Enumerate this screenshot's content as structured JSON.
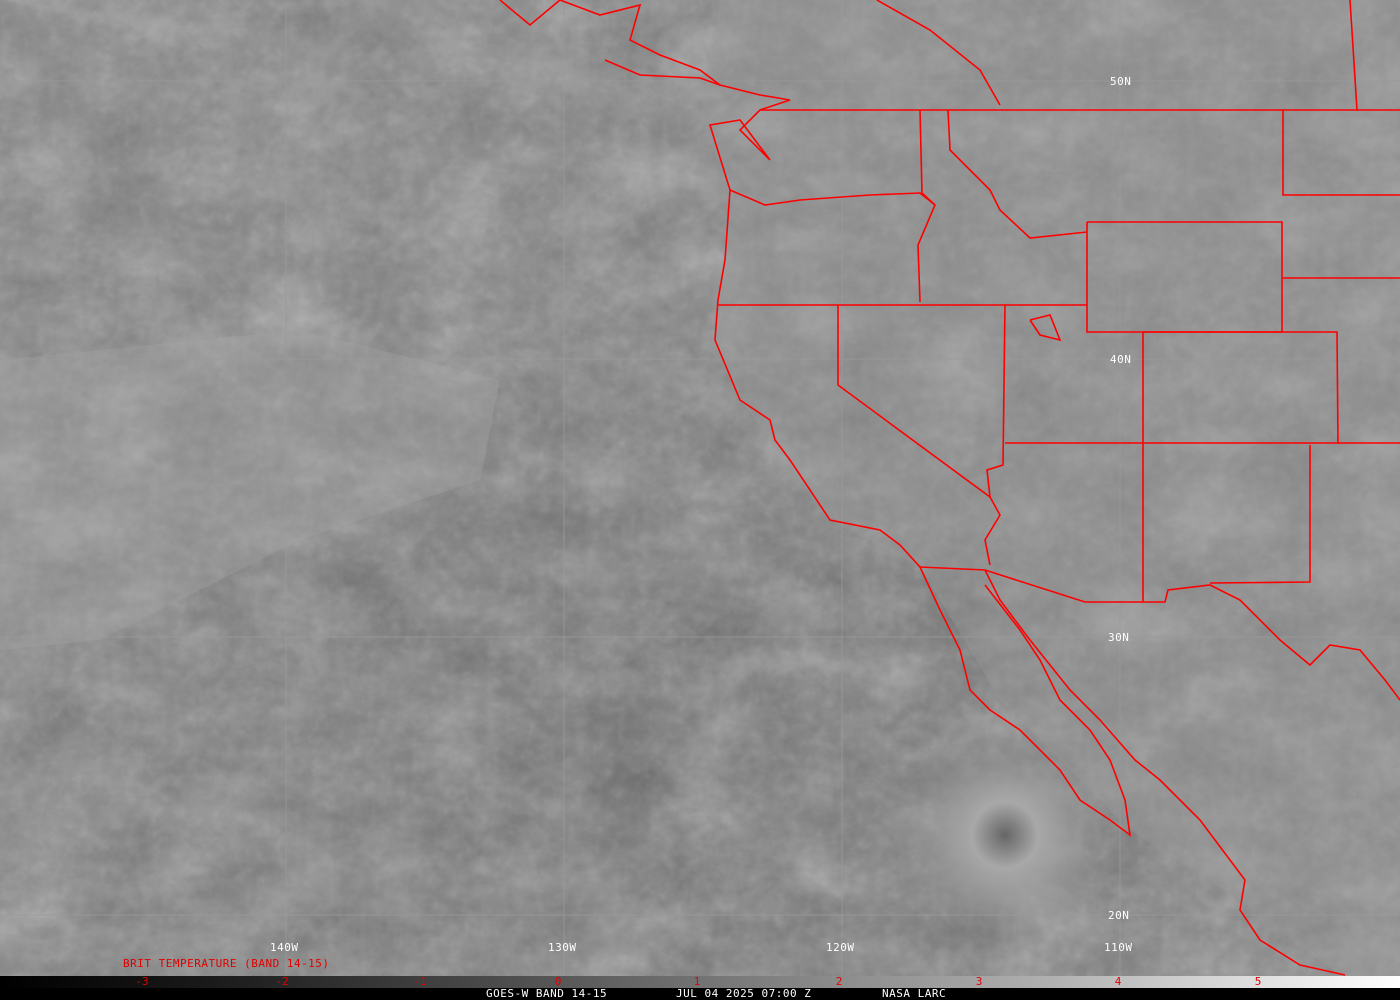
{
  "product_title": "BRIT TEMPERATURE (BAND 14-15)",
  "latitude_labels": [
    "50N",
    "40N",
    "30N",
    "20N"
  ],
  "longitude_labels": [
    "140W",
    "130W",
    "120W",
    "110W"
  ],
  "colorbar": {
    "ticks": [
      "-3",
      "-2",
      "-1",
      "0",
      "1",
      "2",
      "3",
      "4",
      "5"
    ],
    "tick_color": "#e00000"
  },
  "footer": {
    "satellite": "GOES-W BAND 14-15",
    "datetime": "JUL 04 2025 07:00 Z",
    "source": "NASA LARC"
  },
  "colors": {
    "borders": "#ff0000",
    "grid": "#9a9a9a",
    "labels": "#ffffff"
  }
}
